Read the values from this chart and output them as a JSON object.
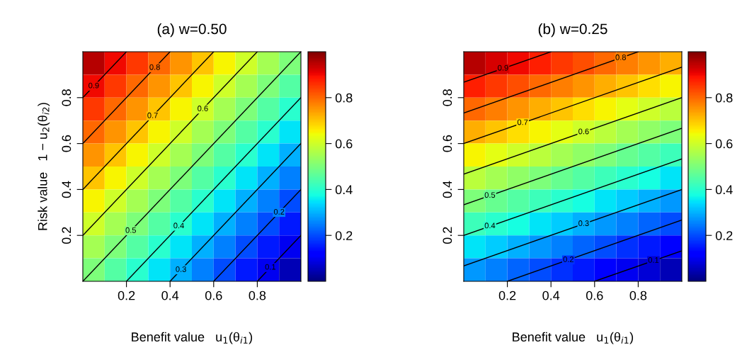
{
  "chart_data": [
    {
      "type": "heatmap",
      "title": "(a) w=0.50",
      "xlabel": "Benefit value   u$_{1}$(θ$_{i1}$)",
      "ylabel": "Risk value   1 − u$_{2}$(θ$_{i2}$)",
      "xlim": [
        0,
        1
      ],
      "ylim": [
        0,
        1
      ],
      "xticks": [
        0.2,
        0.4,
        0.6,
        0.8
      ],
      "yticks": [
        0.2,
        0.4,
        0.6,
        0.8
      ],
      "clim": [
        0,
        1
      ],
      "cticks": [
        0.2,
        0.4,
        0.6,
        0.8
      ],
      "cells": [
        [
          0.95,
          0.9,
          0.85,
          0.8,
          0.75,
          0.7,
          0.65,
          0.6,
          0.55,
          0.5
        ],
        [
          0.9,
          0.85,
          0.8,
          0.75,
          0.7,
          0.65,
          0.6,
          0.55,
          0.5,
          0.45
        ],
        [
          0.85,
          0.8,
          0.75,
          0.7,
          0.65,
          0.6,
          0.55,
          0.5,
          0.45,
          0.4
        ],
        [
          0.8,
          0.75,
          0.7,
          0.65,
          0.6,
          0.55,
          0.5,
          0.45,
          0.4,
          0.35
        ],
        [
          0.75,
          0.7,
          0.65,
          0.6,
          0.55,
          0.5,
          0.45,
          0.4,
          0.35,
          0.3
        ],
        [
          0.7,
          0.65,
          0.6,
          0.55,
          0.5,
          0.45,
          0.4,
          0.35,
          0.3,
          0.25
        ],
        [
          0.65,
          0.6,
          0.55,
          0.5,
          0.45,
          0.4,
          0.35,
          0.3,
          0.25,
          0.2
        ],
        [
          0.6,
          0.55,
          0.5,
          0.45,
          0.4,
          0.35,
          0.3,
          0.25,
          0.2,
          0.15
        ],
        [
          0.55,
          0.5,
          0.45,
          0.4,
          0.35,
          0.3,
          0.25,
          0.2,
          0.15,
          0.1
        ],
        [
          0.5,
          0.45,
          0.4,
          0.35,
          0.3,
          0.25,
          0.2,
          0.15,
          0.1,
          0.05
        ]
      ],
      "series": [
        {
          "type": "line",
          "color": "#000000",
          "x": [
            0.8,
            1
          ],
          "values": [
            0,
            0.2
          ]
        },
        {
          "type": "line",
          "color": "#000000",
          "x": [
            0.6,
            1
          ],
          "values": [
            0,
            0.4
          ]
        },
        {
          "type": "line",
          "color": "#000000",
          "x": [
            0.4,
            1
          ],
          "values": [
            0,
            0.6
          ]
        },
        {
          "type": "line",
          "color": "#000000",
          "x": [
            0.2,
            1
          ],
          "values": [
            0,
            0.8
          ]
        },
        {
          "type": "line",
          "color": "#000000",
          "x": [
            0,
            1
          ],
          "values": [
            0,
            1
          ]
        },
        {
          "type": "line",
          "color": "#000000",
          "x": [
            0,
            0.8
          ],
          "values": [
            0.2,
            1
          ]
        },
        {
          "type": "line",
          "color": "#000000",
          "x": [
            0,
            0.6
          ],
          "values": [
            0.4,
            1
          ]
        },
        {
          "type": "line",
          "color": "#000000",
          "x": [
            0,
            0.4
          ],
          "values": [
            0.6,
            1
          ]
        },
        {
          "type": "line",
          "color": "#000000",
          "x": [
            0,
            0.2
          ],
          "values": [
            0.8,
            1
          ]
        }
      ],
      "annotations": [
        {
          "text": "0.1",
          "x": 0.86,
          "y": 0.06
        },
        {
          "text": "0.2",
          "x": 0.9,
          "y": 0.3
        },
        {
          "text": "0.3",
          "x": 0.45,
          "y": 0.05
        },
        {
          "text": "0.4",
          "x": 0.44,
          "y": 0.24
        },
        {
          "text": "0.5",
          "x": 0.22,
          "y": 0.22
        },
        {
          "text": "0.6",
          "x": 0.55,
          "y": 0.75
        },
        {
          "text": "0.7",
          "x": 0.32,
          "y": 0.72
        },
        {
          "text": "0.8",
          "x": 0.33,
          "y": 0.93
        },
        {
          "text": "0.9",
          "x": 0.05,
          "y": 0.85
        }
      ]
    },
    {
      "type": "heatmap",
      "title": "(b) w=0.25",
      "xlabel": "Benefit value   u$_{1}$(θ$_{i1}$)",
      "xlim": [
        0,
        1
      ],
      "ylim": [
        0,
        1
      ],
      "xticks": [
        0.2,
        0.4,
        0.6,
        0.8
      ],
      "yticks": [
        0.2,
        0.4,
        0.6,
        0.8
      ],
      "clim": [
        0,
        1
      ],
      "cticks": [
        0.2,
        0.4,
        0.6,
        0.8
      ],
      "cells": [
        [
          0.95,
          0.925,
          0.9,
          0.875,
          0.85,
          0.825,
          0.8,
          0.775,
          0.75,
          0.725
        ],
        [
          0.875,
          0.85,
          0.825,
          0.8,
          0.775,
          0.75,
          0.725,
          0.7,
          0.675,
          0.65
        ],
        [
          0.8,
          0.775,
          0.75,
          0.725,
          0.7,
          0.675,
          0.65,
          0.625,
          0.6,
          0.575
        ],
        [
          0.725,
          0.7,
          0.675,
          0.65,
          0.625,
          0.6,
          0.575,
          0.55,
          0.525,
          0.5
        ],
        [
          0.65,
          0.625,
          0.6,
          0.575,
          0.55,
          0.525,
          0.5,
          0.475,
          0.45,
          0.425
        ],
        [
          0.575,
          0.55,
          0.525,
          0.5,
          0.475,
          0.45,
          0.425,
          0.4,
          0.375,
          0.35
        ],
        [
          0.5,
          0.475,
          0.45,
          0.425,
          0.4,
          0.375,
          0.35,
          0.325,
          0.3,
          0.275
        ],
        [
          0.425,
          0.4,
          0.375,
          0.35,
          0.325,
          0.3,
          0.275,
          0.25,
          0.225,
          0.2
        ],
        [
          0.35,
          0.325,
          0.3,
          0.275,
          0.25,
          0.225,
          0.2,
          0.175,
          0.15,
          0.125
        ],
        [
          0.275,
          0.25,
          0.225,
          0.2,
          0.175,
          0.15,
          0.125,
          0.1,
          0.075,
          0.05
        ]
      ],
      "series": [
        {
          "type": "line",
          "color": "#000000",
          "x": [
            0.6,
            1
          ],
          "values": [
            0,
            0.133
          ]
        },
        {
          "type": "line",
          "color": "#000000",
          "x": [
            0.2,
            1
          ],
          "values": [
            0,
            0.267
          ]
        },
        {
          "type": "line",
          "color": "#000000",
          "x": [
            0,
            1
          ],
          "values": [
            0.067,
            0.4
          ]
        },
        {
          "type": "line",
          "color": "#000000",
          "x": [
            0,
            1
          ],
          "values": [
            0.2,
            0.533
          ]
        },
        {
          "type": "line",
          "color": "#000000",
          "x": [
            0,
            1
          ],
          "values": [
            0.333,
            0.667
          ]
        },
        {
          "type": "line",
          "color": "#000000",
          "x": [
            0,
            1
          ],
          "values": [
            0.467,
            0.8
          ]
        },
        {
          "type": "line",
          "color": "#000000",
          "x": [
            0,
            1
          ],
          "values": [
            0.6,
            0.933
          ]
        },
        {
          "type": "line",
          "color": "#000000",
          "x": [
            0,
            0.8
          ],
          "values": [
            0.733,
            1
          ]
        },
        {
          "type": "line",
          "color": "#000000",
          "x": [
            0,
            0.4
          ],
          "values": [
            0.867,
            1
          ]
        }
      ],
      "annotations": [
        {
          "text": "0.1",
          "x": 0.87,
          "y": 0.09
        },
        {
          "text": "0.2",
          "x": 0.48,
          "y": 0.093
        },
        {
          "text": "0.3",
          "x": 0.55,
          "y": 0.25
        },
        {
          "text": "0.4",
          "x": 0.12,
          "y": 0.24
        },
        {
          "text": "0.5",
          "x": 0.12,
          "y": 0.373
        },
        {
          "text": "0.6",
          "x": 0.55,
          "y": 0.65
        },
        {
          "text": "0.7",
          "x": 0.27,
          "y": 0.69
        },
        {
          "text": "0.8",
          "x": 0.72,
          "y": 0.973
        },
        {
          "text": "0.9",
          "x": 0.18,
          "y": 0.927
        }
      ]
    }
  ]
}
